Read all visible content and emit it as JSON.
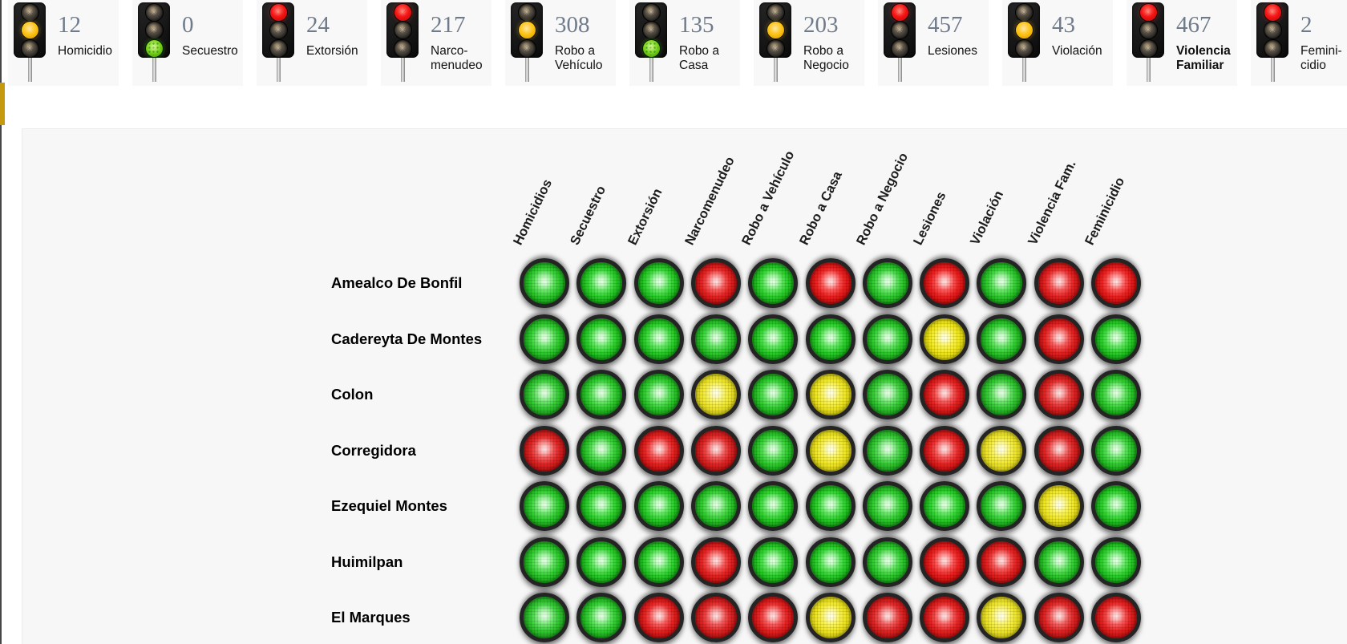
{
  "page": {
    "edge_strip_color": "#474747",
    "edge_accent_color": "#c5990d",
    "panel_background": "#f7f7f7"
  },
  "summary_cards": [
    {
      "label": "Homicidio",
      "value": "12",
      "active": "yellow",
      "bold": false
    },
    {
      "label": "Secuestro",
      "value": "0",
      "active": "green",
      "bold": false
    },
    {
      "label": "Extorsión",
      "value": "24",
      "active": "red",
      "bold": false
    },
    {
      "label": "Narco-menudeo",
      "value": "217",
      "active": "red",
      "bold": false
    },
    {
      "label": "Robo a Vehículo",
      "value": "308",
      "active": "yellow",
      "bold": false
    },
    {
      "label": "Robo a Casa",
      "value": "135",
      "active": "green",
      "bold": false
    },
    {
      "label": "Robo a Negocio",
      "value": "203",
      "active": "yellow",
      "bold": false
    },
    {
      "label": "Lesiones",
      "value": "457",
      "active": "red",
      "bold": false
    },
    {
      "label": "Violación",
      "value": "43",
      "active": "yellow",
      "bold": false
    },
    {
      "label": "Violencia Familiar",
      "value": "467",
      "active": "red",
      "bold": true
    },
    {
      "label": "Femini-cidio",
      "value": "2",
      "active": "red",
      "bold": false
    }
  ],
  "matrix": {
    "columns": [
      "Homicidios",
      "Secuestro",
      "Extorsión",
      "Narcomenudeo",
      "Robo a Vehículo",
      "Robo a Casa",
      "Robo a Negocio",
      "Lesiones",
      "Violación",
      "Violencia Fam.",
      "Feminicidio"
    ],
    "rows": [
      {
        "name": "Amealco De Bonfil",
        "lights": [
          "green",
          "green",
          "green",
          "red",
          "green",
          "red",
          "green",
          "red",
          "green",
          "red",
          "red"
        ]
      },
      {
        "name": "Cadereyta De Montes",
        "lights": [
          "green",
          "green",
          "green",
          "green",
          "green",
          "green",
          "green",
          "yellow",
          "green",
          "red",
          "green"
        ]
      },
      {
        "name": "Colon",
        "lights": [
          "green",
          "green",
          "green",
          "yellow",
          "green",
          "yellow",
          "green",
          "red",
          "green",
          "red",
          "green"
        ]
      },
      {
        "name": "Corregidora",
        "lights": [
          "red",
          "green",
          "red",
          "red",
          "green",
          "yellow",
          "green",
          "red",
          "yellow",
          "red",
          "green"
        ]
      },
      {
        "name": "Ezequiel Montes",
        "lights": [
          "green",
          "green",
          "green",
          "green",
          "green",
          "green",
          "green",
          "green",
          "green",
          "yellow",
          "green"
        ]
      },
      {
        "name": "Huimilpan",
        "lights": [
          "green",
          "green",
          "green",
          "red",
          "green",
          "green",
          "green",
          "red",
          "red",
          "green",
          "green"
        ]
      },
      {
        "name": "El Marques",
        "lights": [
          "green",
          "green",
          "red",
          "red",
          "red",
          "yellow",
          "red",
          "red",
          "yellow",
          "red",
          "red"
        ]
      }
    ],
    "status_colors": {
      "green": "#2ecc2e",
      "yellow": "#efe622",
      "red": "#e62222"
    }
  }
}
